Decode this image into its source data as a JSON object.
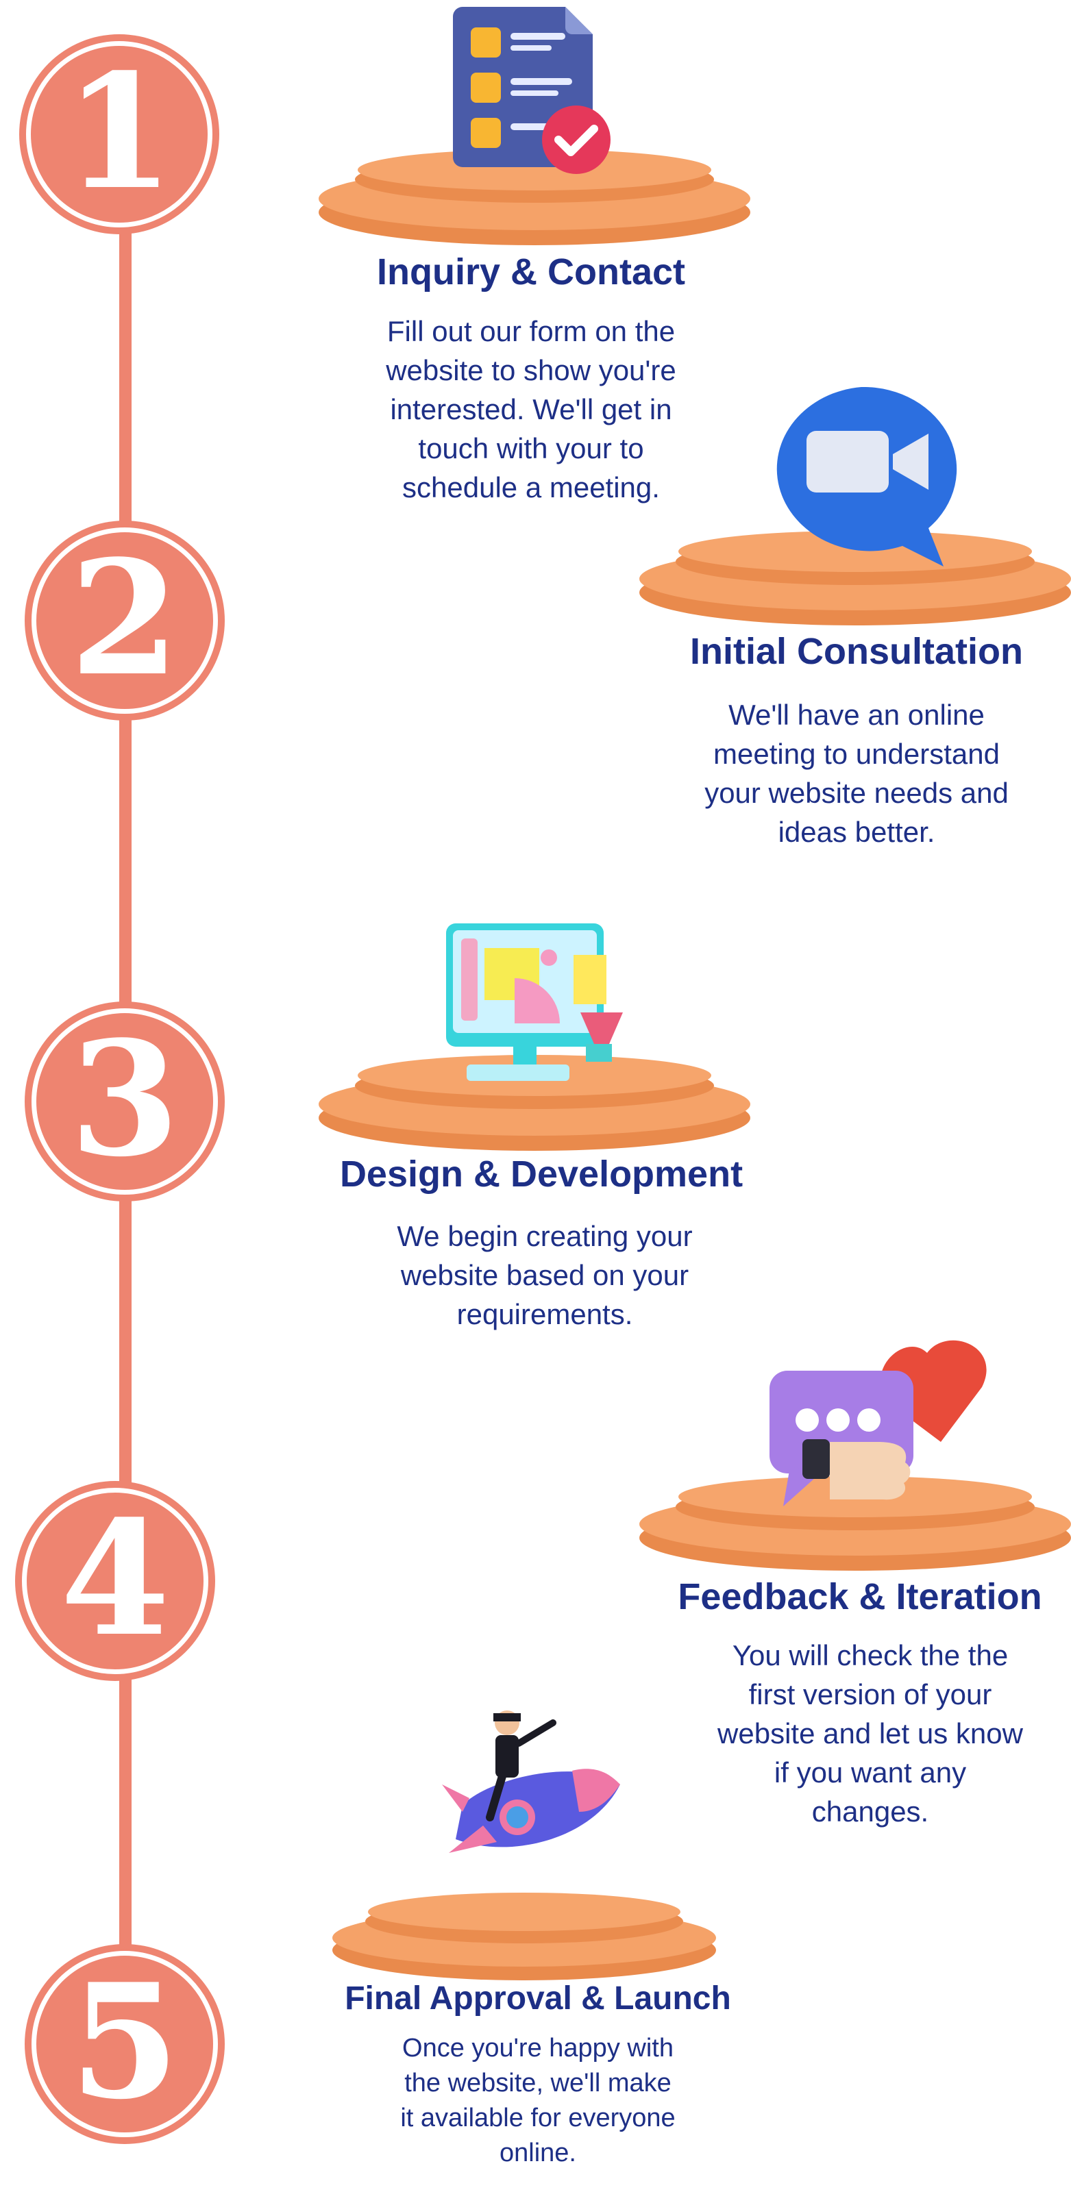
{
  "steps": [
    {
      "number": "1",
      "title": "Inquiry & Contact",
      "lines": [
        "Fill out our form on the",
        "website to show you're",
        "interested. We'll get in",
        "touch with your to",
        "schedule a meeting."
      ],
      "icon": "checklist-icon"
    },
    {
      "number": "2",
      "title": "Initial Consultation",
      "lines": [
        "We'll have an online",
        "meeting to understand",
        "your website needs and",
        "ideas better."
      ],
      "icon": "video-call-icon"
    },
    {
      "number": "3",
      "title": "Design & Development",
      "lines": [
        "We begin creating your",
        "website based on your",
        "requirements."
      ],
      "icon": "design-monitor-icon"
    },
    {
      "number": "4",
      "title": "Feedback & Iteration",
      "lines": [
        "You will check the the",
        "first version of your",
        "website and let us know",
        "if you want any",
        "changes."
      ],
      "icon": "feedback-icon"
    },
    {
      "number": "5",
      "title": "Final Approval & Launch",
      "lines": [
        "Once you're happy with",
        "the website, we'll make",
        "it available for everyone",
        "online."
      ],
      "icon": "rocket-launch-icon"
    }
  ],
  "colors": {
    "accent": "#ee8470",
    "title": "#1d2f86",
    "platform": "#f39a5a"
  }
}
